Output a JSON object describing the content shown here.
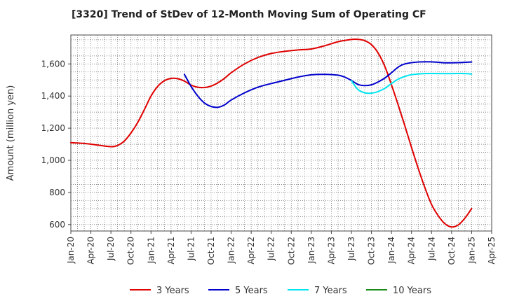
{
  "chart_data": {
    "type": "line",
    "title": "[3320]  Trend of StDev of 12-Month Moving Sum of Operating CF",
    "xlabel": "",
    "ylabel": "Amount (million yen)",
    "ylim": [
      560,
      1780
    ],
    "yticks": [
      600,
      800,
      1000,
      1200,
      1400,
      1600
    ],
    "ytick_labels": [
      "600",
      "800",
      "1,000",
      "1,200",
      "1,400",
      "1,600"
    ],
    "xlim": [
      "2020-01",
      "2025-04"
    ],
    "xtick_labels": [
      "Jan-20",
      "Apr-20",
      "Jul-20",
      "Oct-20",
      "Jan-21",
      "Apr-21",
      "Jul-21",
      "Oct-21",
      "Jan-22",
      "Apr-22",
      "Jul-22",
      "Oct-22",
      "Jan-23",
      "Apr-23",
      "Jul-23",
      "Oct-23",
      "Jan-24",
      "Apr-24",
      "Jul-24",
      "Oct-24",
      "Jan-25",
      "Apr-25"
    ],
    "grid": true,
    "legend_position": "bottom",
    "series": [
      {
        "name": "3 Years",
        "color": "#e00000",
        "x": [
          "2020-01",
          "2020-03",
          "2020-05",
          "2020-07",
          "2020-08",
          "2020-09",
          "2020-10",
          "2020-11",
          "2020-12",
          "2021-01",
          "2021-02",
          "2021-03",
          "2021-04",
          "2021-05",
          "2021-06",
          "2021-07",
          "2021-08",
          "2021-09",
          "2021-10",
          "2021-11",
          "2021-12",
          "2022-01",
          "2022-03",
          "2022-05",
          "2022-07",
          "2022-09",
          "2022-11",
          "2023-01",
          "2023-03",
          "2023-05",
          "2023-07",
          "2023-08",
          "2023-09",
          "2023-10",
          "2023-11",
          "2023-12",
          "2024-01",
          "2024-02",
          "2024-03",
          "2024-04",
          "2024-05",
          "2024-06",
          "2024-07",
          "2024-08",
          "2024-09",
          "2024-10",
          "2024-11",
          "2024-12",
          "2025-01"
        ],
        "values": [
          1110,
          1105,
          1095,
          1085,
          1093,
          1120,
          1170,
          1235,
          1315,
          1400,
          1460,
          1495,
          1510,
          1508,
          1493,
          1468,
          1455,
          1453,
          1462,
          1482,
          1510,
          1545,
          1600,
          1640,
          1665,
          1678,
          1687,
          1693,
          1713,
          1738,
          1752,
          1753,
          1745,
          1720,
          1668,
          1585,
          1470,
          1345,
          1215,
          1080,
          950,
          830,
          725,
          655,
          605,
          585,
          598,
          640,
          700
        ]
      },
      {
        "name": "5 Years",
        "color": "#0000cc",
        "x": [
          "2021-06",
          "2021-07",
          "2021-08",
          "2021-09",
          "2021-10",
          "2021-11",
          "2021-12",
          "2022-01",
          "2022-03",
          "2022-05",
          "2022-07",
          "2022-09",
          "2022-11",
          "2023-01",
          "2023-03",
          "2023-05",
          "2023-06",
          "2023-07",
          "2023-08",
          "2023-09",
          "2023-10",
          "2023-11",
          "2023-12",
          "2024-01",
          "2024-02",
          "2024-03",
          "2024-05",
          "2024-07",
          "2024-09",
          "2024-11",
          "2025-01"
        ],
        "values": [
          1535,
          1460,
          1400,
          1357,
          1335,
          1330,
          1345,
          1375,
          1420,
          1455,
          1478,
          1498,
          1518,
          1532,
          1535,
          1530,
          1518,
          1497,
          1472,
          1465,
          1470,
          1488,
          1512,
          1545,
          1580,
          1600,
          1612,
          1613,
          1607,
          1608,
          1612
        ]
      },
      {
        "name": "7 Years",
        "color": "#00e5ee",
        "x": [
          "2023-07",
          "2023-08",
          "2023-09",
          "2023-10",
          "2023-11",
          "2023-12",
          "2024-01",
          "2024-02",
          "2024-03",
          "2024-04",
          "2024-06",
          "2024-08",
          "2024-10",
          "2024-12",
          "2025-01"
        ],
        "values": [
          1495,
          1440,
          1420,
          1418,
          1428,
          1448,
          1478,
          1505,
          1522,
          1533,
          1540,
          1540,
          1540,
          1540,
          1537
        ]
      },
      {
        "name": "10 Years",
        "color": "#1a8c1a",
        "x": [],
        "values": []
      }
    ]
  }
}
